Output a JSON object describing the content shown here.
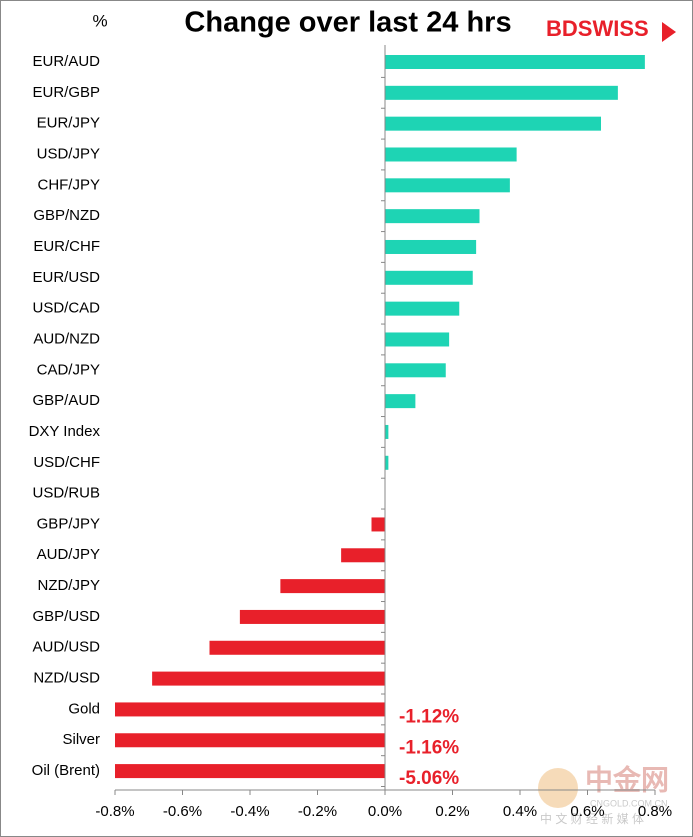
{
  "chart_data": {
    "type": "bar",
    "orientation": "horizontal",
    "title": "Change over last 24 hrs",
    "unit_label": "%",
    "logo": "BDSWISS",
    "watermark": {
      "title": "中金网",
      "site": "CNGOLD.COM.CN",
      "tagline": "中 文 财 经 新 媒 体"
    },
    "categories": [
      "EUR/AUD",
      "EUR/GBP",
      "EUR/JPY",
      "USD/JPY",
      "CHF/JPY",
      "GBP/NZD",
      "EUR/CHF",
      "EUR/USD",
      "USD/CAD",
      "AUD/NZD",
      "CAD/JPY",
      "GBP/AUD",
      "DXY Index",
      "USD/CHF",
      "USD/RUB",
      "GBP/JPY",
      "AUD/JPY",
      "NZD/JPY",
      "GBP/USD",
      "AUD/USD",
      "NZD/USD",
      "Gold",
      "Silver",
      "Oil (Brent)"
    ],
    "values": [
      0.77,
      0.69,
      0.64,
      0.39,
      0.37,
      0.28,
      0.27,
      0.26,
      0.22,
      0.19,
      0.18,
      0.09,
      0.01,
      0.01,
      0,
      -0.04,
      -0.13,
      -0.31,
      -0.43,
      -0.52,
      -0.69,
      -1.12,
      -1.16,
      -5.06
    ],
    "value_labels": [
      null,
      null,
      null,
      null,
      null,
      null,
      null,
      null,
      null,
      null,
      null,
      null,
      null,
      null,
      null,
      null,
      null,
      null,
      null,
      null,
      null,
      "-1.12%",
      "-1.16%",
      "-5.06%"
    ],
    "positive_color": "#1ed4b4",
    "negative_color": "#e8202a",
    "value_label_color": "#e8202a",
    "xlim": [
      -0.8,
      0.8
    ],
    "xticks": [
      {
        "value": -0.8,
        "label": "-0.8%"
      },
      {
        "value": -0.6,
        "label": "-0.6%"
      },
      {
        "value": -0.4,
        "label": "-0.4%"
      },
      {
        "value": -0.2,
        "label": "-0.2%"
      },
      {
        "value": 0,
        "label": "0.0%"
      },
      {
        "value": 0.2,
        "label": "0.2%"
      },
      {
        "value": 0.4,
        "label": "0.4%"
      },
      {
        "value": 0.6,
        "label": "0.6%"
      },
      {
        "value": 0.8,
        "label": "0.8%"
      }
    ],
    "grid": false
  }
}
